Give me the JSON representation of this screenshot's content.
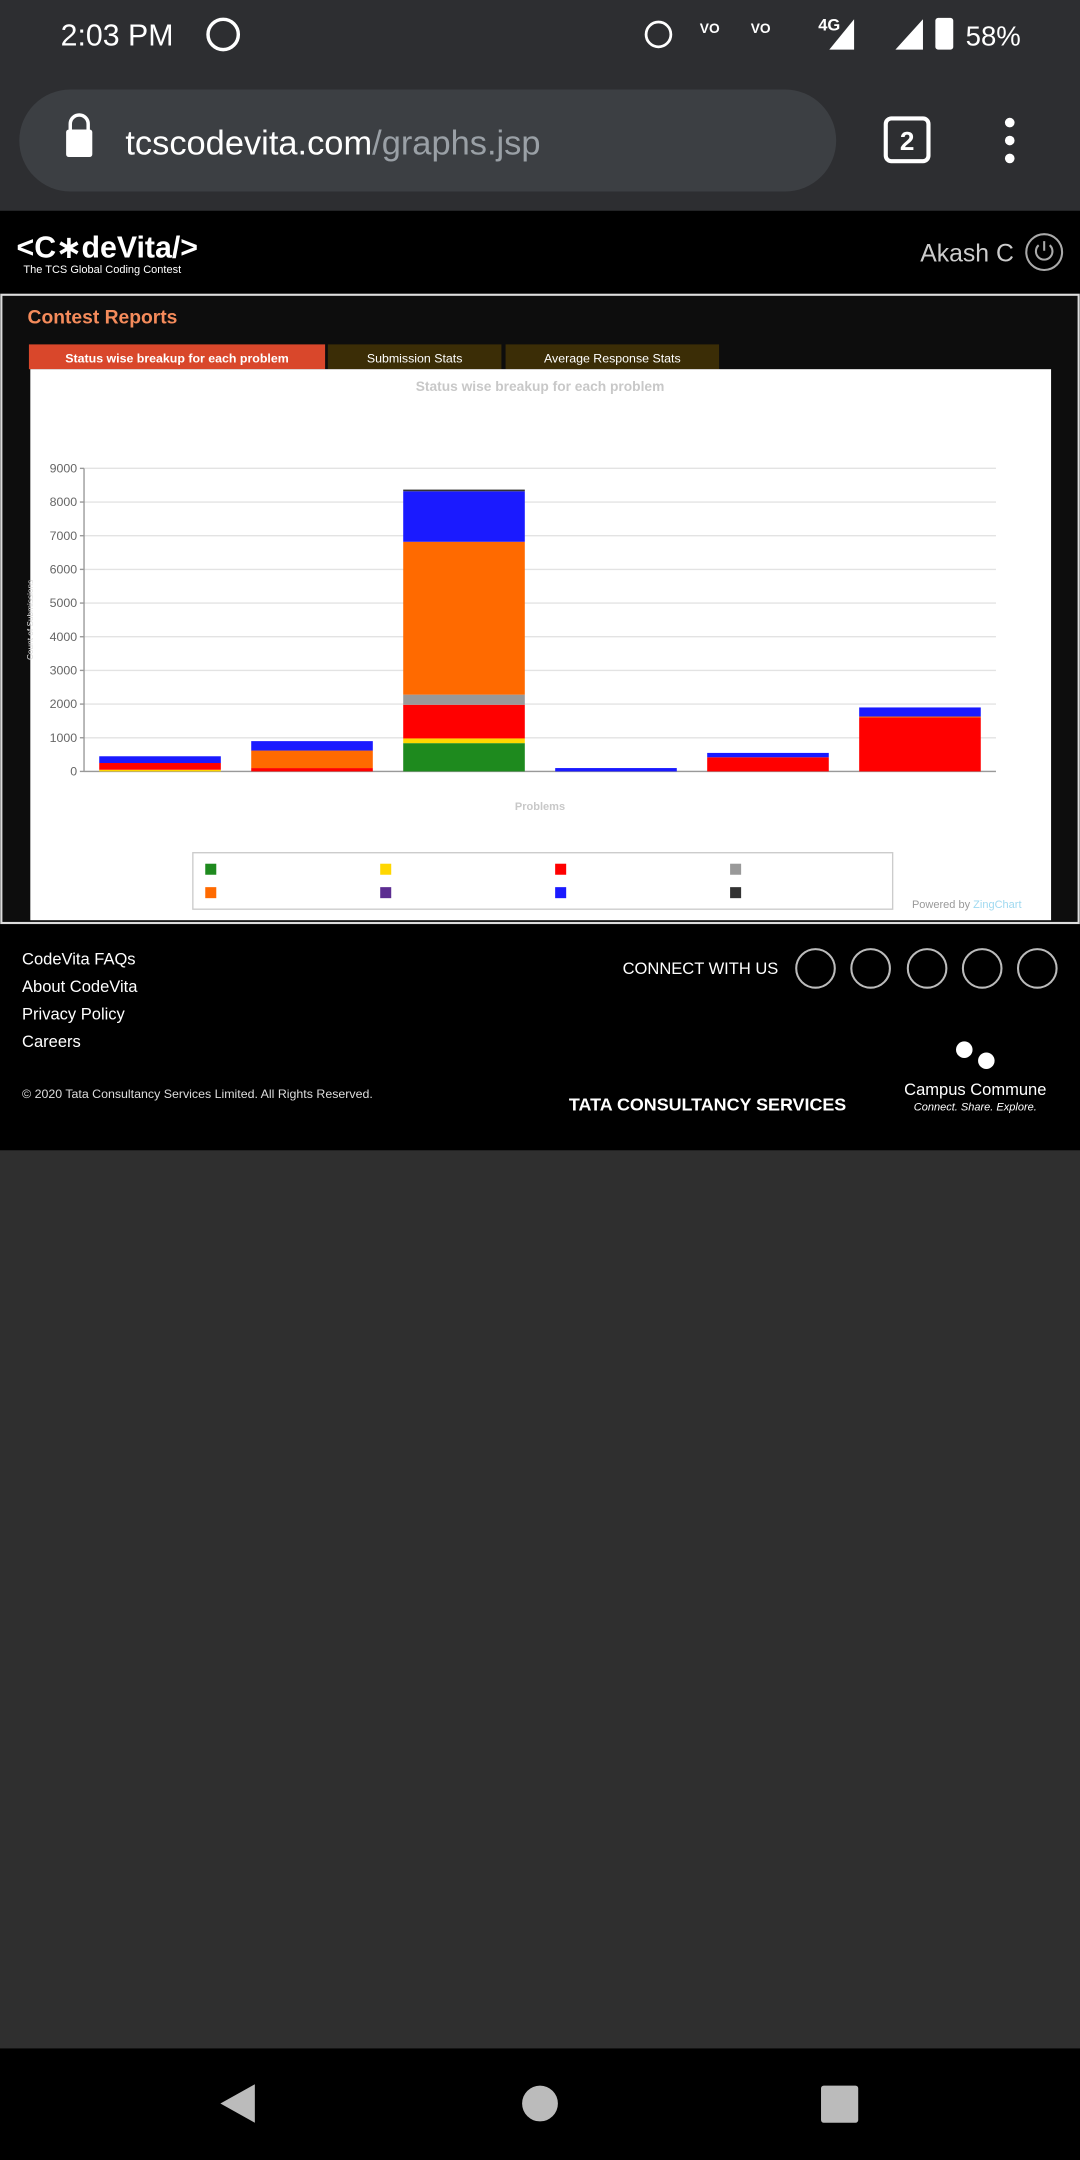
{
  "status_bar": {
    "time": "2:03 PM",
    "network": "4G",
    "battery": "58%"
  },
  "browser": {
    "url_host": "tcscodevita.com",
    "url_path": "/graphs.jsp",
    "tab_count": 2
  },
  "header": {
    "logo": "<C∗deVita/>",
    "logo_tagline": "The TCS Global Coding Contest",
    "user": "Akash C"
  },
  "reports": {
    "title": "Contest Reports",
    "tabs": [
      "Status wise breakup for each problem",
      "Submission Stats",
      "Average Response Stats"
    ],
    "powered_by": "Powered by",
    "powered_by_brand": "ZingChart"
  },
  "chart_data": {
    "type": "bar",
    "stacked": true,
    "title": "Status wise breakup for each problem",
    "x_label": "Problems",
    "y_label": "Count of Submissions",
    "categories": [
      null,
      null,
      null,
      null,
      null,
      null
    ],
    "series": [
      {
        "color": "#1e8a1e",
        "values": [
          0,
          0,
          840,
          0,
          0,
          0
        ]
      },
      {
        "color": "#ffd700",
        "values": [
          50,
          0,
          140,
          0,
          0,
          0
        ]
      },
      {
        "color": "#ff0000",
        "values": [
          200,
          100,
          1000,
          0,
          420,
          1600
        ]
      },
      {
        "color": "#999999",
        "values": [
          0,
          0,
          300,
          0,
          0,
          0
        ]
      },
      {
        "color": "#ff6a00",
        "values": [
          0,
          520,
          4540,
          0,
          0,
          30
        ]
      },
      {
        "color": "#5c2d91",
        "values": [
          0,
          0,
          0,
          0,
          0,
          0
        ]
      },
      {
        "color": "#1a1aff",
        "values": [
          200,
          280,
          1500,
          100,
          130,
          270
        ]
      },
      {
        "color": "#333333",
        "values": [
          0,
          0,
          50,
          0,
          0,
          0
        ]
      }
    ],
    "ylim": [
      0,
      9000
    ],
    "yticks": [
      0,
      1000,
      2000,
      3000,
      4000,
      5000,
      6000,
      7000,
      8000,
      9000
    ],
    "grid": true
  },
  "footer": {
    "links": [
      "CodeVita FAQs",
      "About CodeVita",
      "Privacy Policy",
      "Careers"
    ],
    "connect": "CONNECT WITH US",
    "copyright": "© 2020 Tata Consultancy Services Limited. All Rights Reserved.",
    "tcs": "TATA CONSULTANCY SERVICES",
    "campus": "Campus Commune",
    "campus_tagline": "Connect. Share. Explore."
  }
}
